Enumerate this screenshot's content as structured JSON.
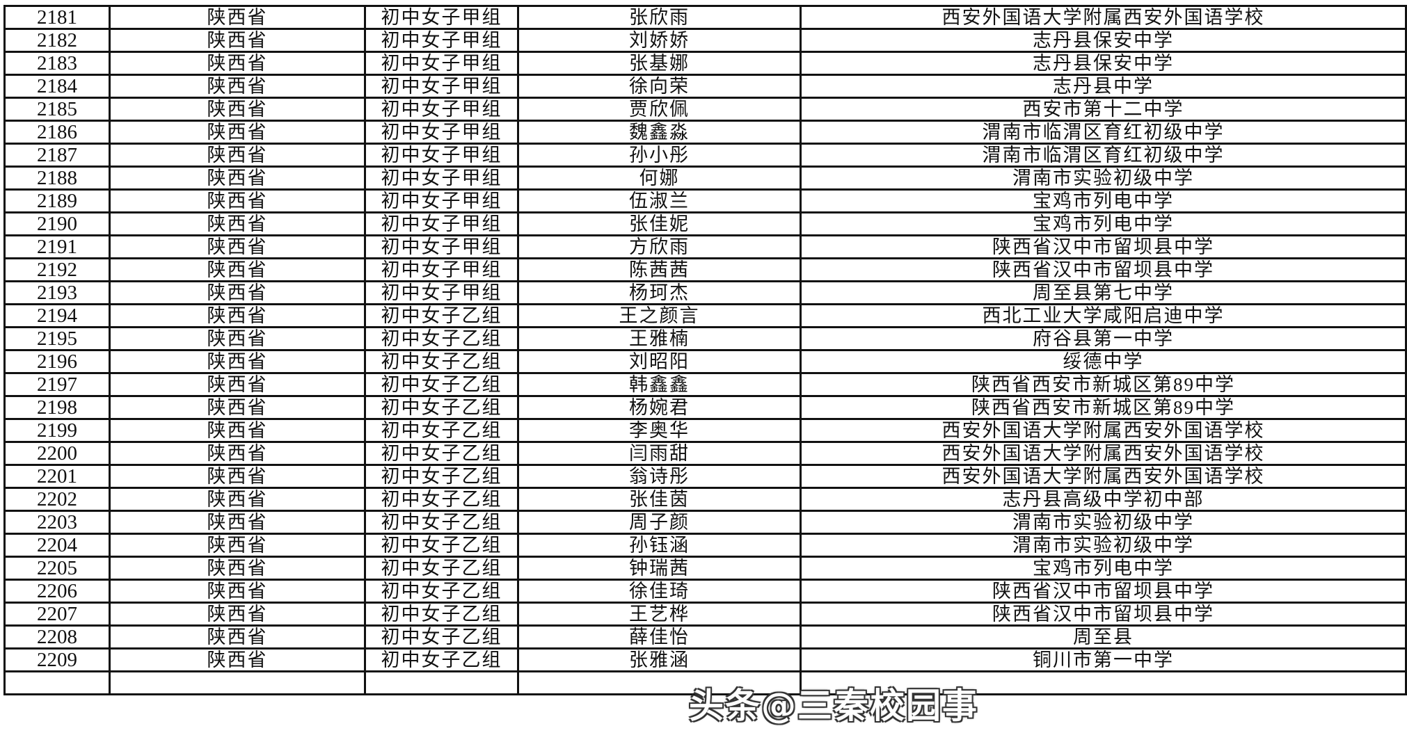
{
  "rows": [
    [
      "2181",
      "陕西省",
      "初中女子甲组",
      "张欣雨",
      "西安外国语大学附属西安外国语学校"
    ],
    [
      "2182",
      "陕西省",
      "初中女子甲组",
      "刘娇娇",
      "志丹县保安中学"
    ],
    [
      "2183",
      "陕西省",
      "初中女子甲组",
      "张基娜",
      "志丹县保安中学"
    ],
    [
      "2184",
      "陕西省",
      "初中女子甲组",
      "徐向荣",
      "志丹县中学"
    ],
    [
      "2185",
      "陕西省",
      "初中女子甲组",
      "贾欣佩",
      "西安市第十二中学"
    ],
    [
      "2186",
      "陕西省",
      "初中女子甲组",
      "魏鑫淼",
      "渭南市临渭区育红初级中学"
    ],
    [
      "2187",
      "陕西省",
      "初中女子甲组",
      "孙小彤",
      "渭南市临渭区育红初级中学"
    ],
    [
      "2188",
      "陕西省",
      "初中女子甲组",
      "何娜",
      "渭南市实验初级中学"
    ],
    [
      "2189",
      "陕西省",
      "初中女子甲组",
      "伍淑兰",
      "宝鸡市列电中学"
    ],
    [
      "2190",
      "陕西省",
      "初中女子甲组",
      "张佳妮",
      "宝鸡市列电中学"
    ],
    [
      "2191",
      "陕西省",
      "初中女子甲组",
      "方欣雨",
      "陕西省汉中市留坝县中学"
    ],
    [
      "2192",
      "陕西省",
      "初中女子甲组",
      "陈茜茜",
      "陕西省汉中市留坝县中学"
    ],
    [
      "2193",
      "陕西省",
      "初中女子甲组",
      "杨珂杰",
      "周至县第七中学"
    ],
    [
      "2194",
      "陕西省",
      "初中女子乙组",
      "王之颜言",
      "西北工业大学咸阳启迪中学"
    ],
    [
      "2195",
      "陕西省",
      "初中女子乙组",
      "王雅楠",
      "府谷县第一中学"
    ],
    [
      "2196",
      "陕西省",
      "初中女子乙组",
      "刘昭阳",
      "绥德中学"
    ],
    [
      "2197",
      "陕西省",
      "初中女子乙组",
      "韩鑫鑫",
      "陕西省西安市新城区第89中学"
    ],
    [
      "2198",
      "陕西省",
      "初中女子乙组",
      "杨婉君",
      "陕西省西安市新城区第89中学"
    ],
    [
      "2199",
      "陕西省",
      "初中女子乙组",
      "李奥华",
      "西安外国语大学附属西安外国语学校"
    ],
    [
      "2200",
      "陕西省",
      "初中女子乙组",
      "闫雨甜",
      "西安外国语大学附属西安外国语学校"
    ],
    [
      "2201",
      "陕西省",
      "初中女子乙组",
      "翁诗彤",
      "西安外国语大学附属西安外国语学校"
    ],
    [
      "2202",
      "陕西省",
      "初中女子乙组",
      "张佳茵",
      "志丹县高级中学初中部"
    ],
    [
      "2203",
      "陕西省",
      "初中女子乙组",
      "周子颜",
      "渭南市实验初级中学"
    ],
    [
      "2204",
      "陕西省",
      "初中女子乙组",
      "孙钰涵",
      "渭南市实验初级中学"
    ],
    [
      "2205",
      "陕西省",
      "初中女子乙组",
      "钟瑞茜",
      "宝鸡市列电中学"
    ],
    [
      "2206",
      "陕西省",
      "初中女子乙组",
      "徐佳琦",
      "陕西省汉中市留坝县中学"
    ],
    [
      "2207",
      "陕西省",
      "初中女子乙组",
      "王艺桦",
      "陕西省汉中市留坝县中学"
    ],
    [
      "2208",
      "陕西省",
      "初中女子乙组",
      "薛佳怡",
      "周至县"
    ],
    [
      "2209",
      "陕西省",
      "初中女子乙组",
      "张雅涵",
      "铜川市第一中学"
    ]
  ],
  "watermark": "头条@三秦校园事"
}
